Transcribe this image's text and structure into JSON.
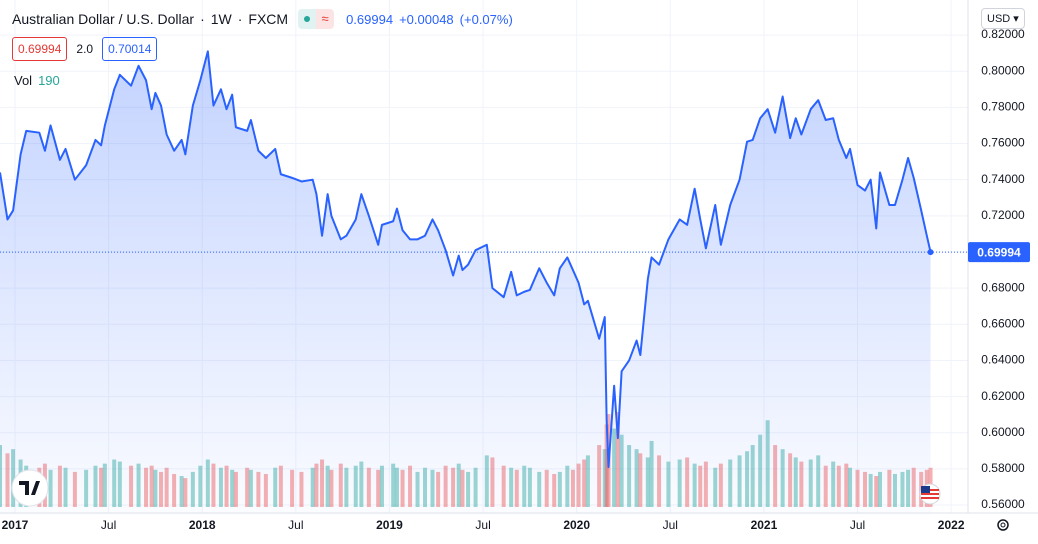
{
  "header": {
    "symbol": "Australian Dollar / U.S. Dollar",
    "interval": "1W",
    "exchange": "FXCM",
    "last": "0.69994",
    "change": "+0.00048",
    "change_pct": "(+0.07%)",
    "sell": "0.69994",
    "spread": "2.0",
    "buy": "0.70014",
    "currency": "USD"
  },
  "chart_data": {
    "type": "area",
    "color": "#2962ff",
    "grid": true,
    "x": [
      2016.92,
      2016.96,
      2016.99,
      2017.03,
      2017.06,
      2017.13,
      2017.16,
      2017.19,
      2017.24,
      2017.27,
      2017.32,
      2017.38,
      2017.43,
      2017.46,
      2017.48,
      2017.53,
      2017.56,
      2017.62,
      2017.66,
      2017.7,
      2017.73,
      2017.75,
      2017.78,
      2017.81,
      2017.85,
      2017.89,
      2017.91,
      2017.95,
      2017.99,
      2018.03,
      2018.06,
      2018.1,
      2018.13,
      2018.16,
      2018.18,
      2018.24,
      2018.26,
      2018.3,
      2018.34,
      2018.39,
      2018.42,
      2018.48,
      2018.53,
      2018.59,
      2018.61,
      2018.64,
      2018.67,
      2018.69,
      2018.74,
      2018.77,
      2018.82,
      2018.85,
      2018.89,
      2018.94,
      2018.96,
      2019.02,
      2019.04,
      2019.07,
      2019.11,
      2019.15,
      2019.19,
      2019.23,
      2019.26,
      2019.3,
      2019.34,
      2019.37,
      2019.39,
      2019.42,
      2019.46,
      2019.52,
      2019.55,
      2019.61,
      2019.65,
      2019.68,
      2019.72,
      2019.75,
      2019.8,
      2019.84,
      2019.88,
      2019.91,
      2019.95,
      2019.98,
      2020.01,
      2020.04,
      2020.06,
      2020.12,
      2020.15,
      2020.16,
      2020.17,
      2020.2,
      2020.22,
      2020.24,
      2020.28,
      2020.32,
      2020.34,
      2020.38,
      2020.4,
      2020.44,
      2020.49,
      2020.55,
      2020.59,
      2020.63,
      2020.66,
      2020.69,
      2020.74,
      2020.77,
      2020.82,
      2020.87,
      2020.91,
      2020.94,
      2020.98,
      2021.02,
      2021.06,
      2021.1,
      2021.14,
      2021.17,
      2021.2,
      2021.25,
      2021.29,
      2021.33,
      2021.37,
      2021.4,
      2021.44,
      2021.46,
      2021.5,
      2021.54,
      2021.57,
      2021.6,
      2021.62,
      2021.67,
      2021.7,
      2021.74,
      2021.77,
      2021.8,
      2021.84,
      2021.87,
      2021.89
    ],
    "values": [
      0.744,
      0.718,
      0.723,
      0.754,
      0.767,
      0.766,
      0.756,
      0.77,
      0.751,
      0.757,
      0.74,
      0.748,
      0.762,
      0.759,
      0.77,
      0.79,
      0.798,
      0.792,
      0.803,
      0.795,
      0.779,
      0.788,
      0.781,
      0.765,
      0.756,
      0.762,
      0.754,
      0.781,
      0.795,
      0.811,
      0.781,
      0.79,
      0.779,
      0.787,
      0.769,
      0.767,
      0.773,
      0.756,
      0.752,
      0.757,
      0.743,
      0.741,
      0.739,
      0.74,
      0.732,
      0.709,
      0.732,
      0.72,
      0.707,
      0.709,
      0.718,
      0.732,
      0.72,
      0.704,
      0.715,
      0.717,
      0.724,
      0.712,
      0.707,
      0.707,
      0.709,
      0.718,
      0.712,
      0.701,
      0.687,
      0.698,
      0.69,
      0.693,
      0.701,
      0.704,
      0.68,
      0.675,
      0.689,
      0.676,
      0.678,
      0.679,
      0.691,
      0.683,
      0.676,
      0.691,
      0.697,
      0.69,
      0.683,
      0.671,
      0.673,
      0.652,
      0.664,
      0.607,
      0.581,
      0.626,
      0.597,
      0.634,
      0.64,
      0.651,
      0.643,
      0.685,
      0.697,
      0.693,
      0.707,
      0.718,
      0.715,
      0.735,
      0.718,
      0.702,
      0.726,
      0.704,
      0.726,
      0.74,
      0.761,
      0.762,
      0.774,
      0.779,
      0.766,
      0.786,
      0.763,
      0.774,
      0.765,
      0.779,
      0.784,
      0.773,
      0.774,
      0.762,
      0.752,
      0.757,
      0.737,
      0.734,
      0.74,
      0.713,
      0.744,
      0.726,
      0.726,
      0.74,
      0.752,
      0.741,
      0.723,
      0.709,
      0.69994
    ],
    "value_labels": {
      "136": "0.69994"
    },
    "volume": {
      "name": "Vol",
      "up_color": "#26a69a",
      "down_color": "#ef5350",
      "values": [
        300,
        260,
        280,
        230,
        200,
        190,
        210,
        180,
        200,
        190,
        170,
        180,
        200,
        190,
        210,
        230,
        220,
        200,
        210,
        190,
        200,
        180,
        170,
        190,
        160,
        150,
        140,
        170,
        200,
        230,
        210,
        190,
        200,
        180,
        170,
        190,
        180,
        170,
        160,
        190,
        200,
        180,
        170,
        190,
        210,
        230,
        200,
        180,
        210,
        190,
        200,
        220,
        190,
        180,
        200,
        210,
        190,
        180,
        200,
        170,
        190,
        180,
        170,
        200,
        190,
        210,
        180,
        170,
        190,
        250,
        240,
        200,
        190,
        180,
        200,
        190,
        170,
        180,
        160,
        170,
        200,
        180,
        210,
        230,
        250,
        300,
        280,
        400,
        450,
        380,
        460,
        350,
        300,
        280,
        260,
        240,
        320,
        250,
        220,
        230,
        240,
        210,
        200,
        220,
        190,
        210,
        230,
        250,
        270,
        300,
        350,
        420,
        300,
        280,
        260,
        240,
        220,
        230,
        250,
        200,
        220,
        200,
        210,
        190,
        180,
        170,
        160,
        150,
        170,
        180,
        160,
        170,
        180,
        190,
        170,
        180,
        190
      ]
    },
    "xlim": [
      2016.92,
      2022.09
    ],
    "xticks": [
      2017,
      {
        "value": 2017.5,
        "label": "Jul"
      },
      2018,
      {
        "value": 2018.5,
        "label": "Jul"
      },
      2019,
      {
        "value": 2019.5,
        "label": "Jul"
      },
      2020,
      {
        "value": 2020.5,
        "label": "Jul"
      },
      2021,
      {
        "value": 2021.5,
        "label": "Jul"
      },
      2022
    ],
    "ylim": [
      0.5545,
      0.8394
    ],
    "yticks": [
      {
        "value": 0.56,
        "label": "0.56000"
      },
      {
        "value": 0.58,
        "label": "0.58000"
      },
      {
        "value": 0.6,
        "label": "0.60000"
      },
      {
        "value": 0.62,
        "label": "0.62000"
      },
      {
        "value": 0.64,
        "label": "0.64000"
      },
      {
        "value": 0.66,
        "label": "0.66000"
      },
      {
        "value": 0.68,
        "label": "0.68000"
      },
      {
        "value": 0.7,
        "label": "0.70000"
      },
      {
        "value": 0.72,
        "label": "0.72000"
      },
      {
        "value": 0.74,
        "label": "0.74000"
      },
      {
        "value": 0.76,
        "label": "0.76000"
      },
      {
        "value": 0.78,
        "label": "0.78000"
      },
      {
        "value": 0.8,
        "label": "0.80000"
      },
      {
        "value": 0.82,
        "label": "0.82000"
      }
    ]
  }
}
